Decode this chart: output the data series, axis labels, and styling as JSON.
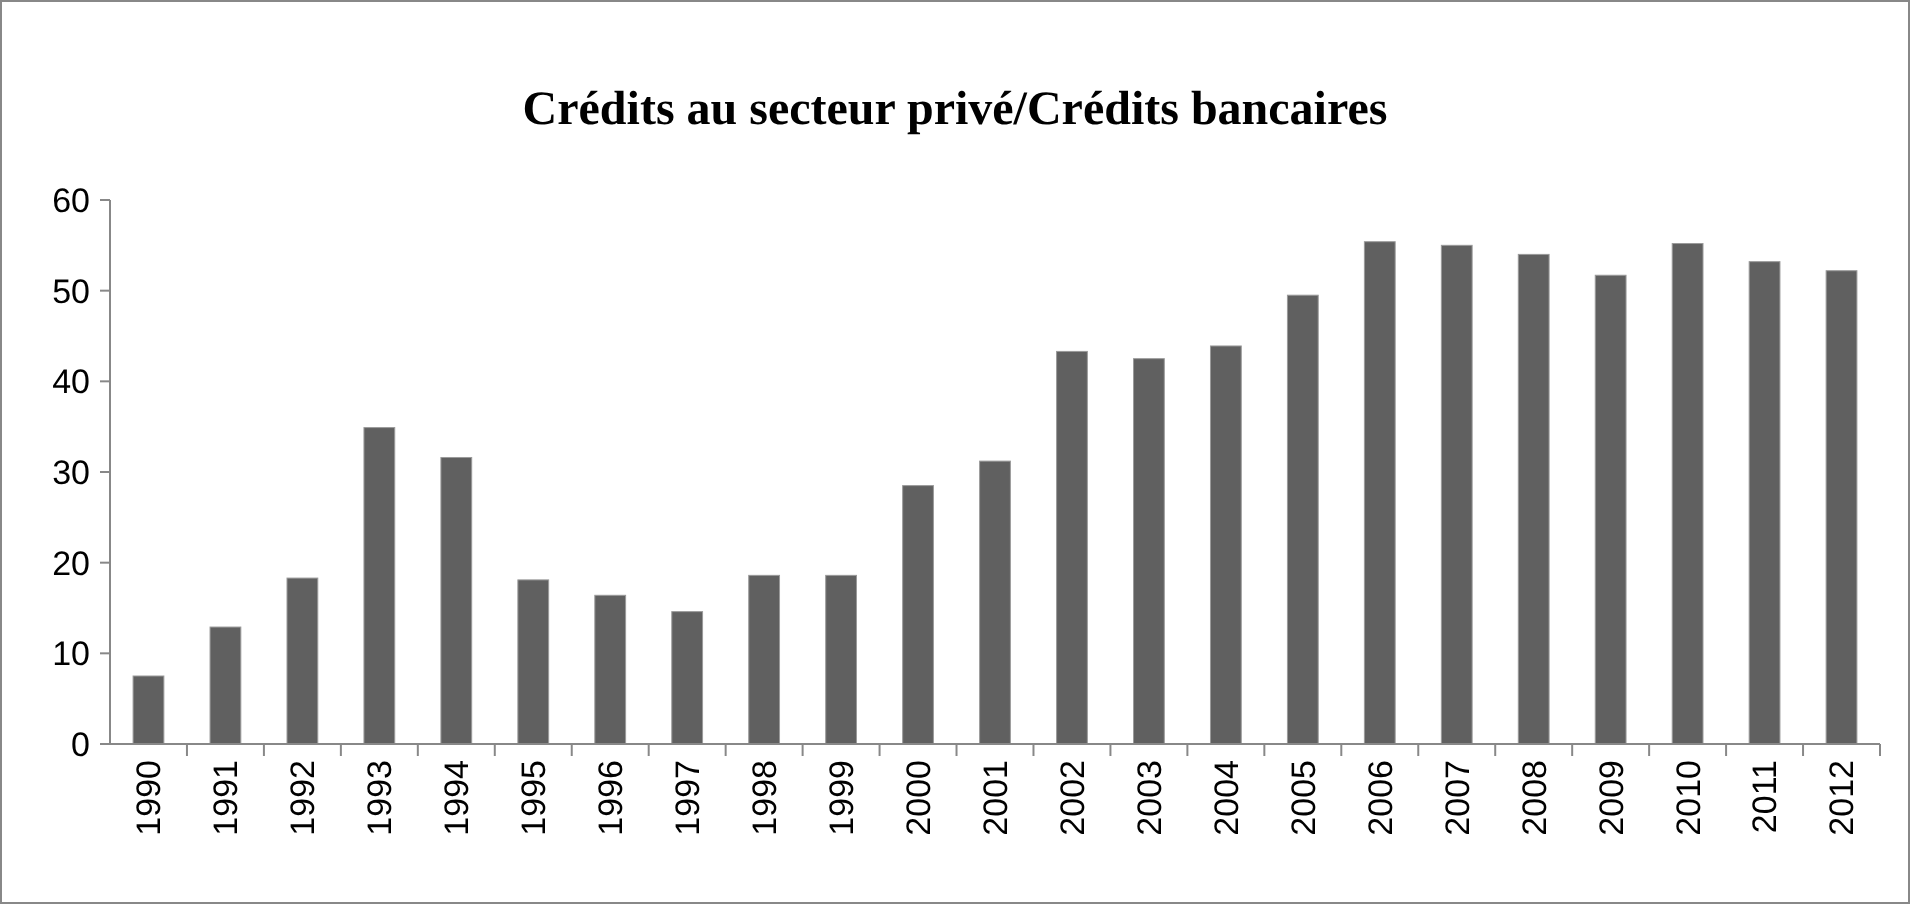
{
  "chart_data": {
    "type": "bar",
    "title": "Crédits au secteur privé/Crédits bancaires",
    "categories": [
      "1990",
      "1991",
      "1992",
      "1993",
      "1994",
      "1995",
      "1996",
      "1997",
      "1998",
      "1999",
      "2000",
      "2001",
      "2002",
      "2003",
      "2004",
      "2005",
      "2006",
      "2007",
      "2008",
      "2009",
      "2010",
      "2011",
      "2012"
    ],
    "values": [
      7.5,
      12.9,
      18.3,
      34.9,
      31.6,
      18.1,
      16.4,
      14.6,
      18.6,
      18.6,
      28.5,
      31.2,
      43.3,
      42.5,
      43.9,
      49.5,
      55.4,
      55.0,
      54.0,
      51.7,
      55.2,
      53.2,
      52.2
    ],
    "color": "#606060",
    "ylim": [
      0,
      60
    ],
    "yticks": [
      0,
      10,
      20,
      30,
      40,
      50,
      60
    ],
    "grid": false
  }
}
